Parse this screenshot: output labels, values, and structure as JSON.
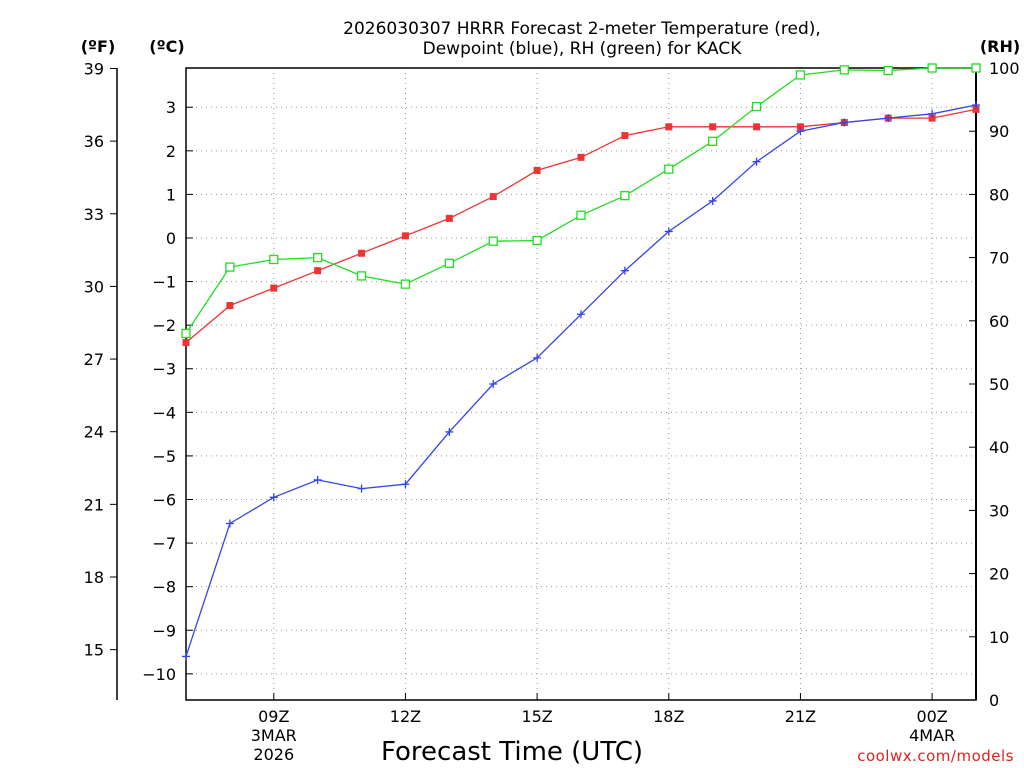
{
  "chart_data": {
    "type": "line",
    "title_line1": "2026030307 HRRR Forecast 2-meter Temperature (red),",
    "title_line2": "Dewpoint (blue), RH (green) for KACK",
    "unit_f": "(ºF)",
    "unit_c": "(ºC)",
    "unit_rh": "(RH)",
    "xlabel": "Forecast Time (UTC)",
    "credit": "coolwx.com/models",
    "x_hours": [
      7,
      8,
      9,
      10,
      11,
      12,
      13,
      14,
      15,
      16,
      17,
      18,
      19,
      20,
      21,
      22,
      23,
      24,
      25
    ],
    "xlim": [
      7,
      25
    ],
    "x_ticks": [
      {
        "hour": 9,
        "lines": [
          "09Z",
          "3MAR",
          "2026"
        ]
      },
      {
        "hour": 12,
        "lines": [
          "12Z"
        ]
      },
      {
        "hour": 15,
        "lines": [
          "15Z"
        ]
      },
      {
        "hour": 18,
        "lines": [
          "18Z"
        ]
      },
      {
        "hour": 21,
        "lines": [
          "21Z"
        ]
      },
      {
        "hour": 24,
        "lines": [
          "00Z",
          "4MAR"
        ]
      }
    ],
    "c_axis": {
      "ylim": [
        -10.6,
        3.9
      ],
      "ticks": [
        3,
        2,
        1,
        0,
        -1,
        -2,
        -3,
        -4,
        -5,
        -6,
        -7,
        -8,
        -9,
        -10
      ],
      "labels": [
        "3",
        "2",
        "1",
        "0",
        "−1",
        "−2",
        "−3",
        "−4",
        "−5",
        "−6",
        "−7",
        "−8",
        "−9",
        "−10"
      ]
    },
    "f_axis": {
      "ticks": [
        39,
        36,
        33,
        30,
        27,
        24,
        21,
        18,
        15
      ],
      "labels": [
        "39",
        "36",
        "33",
        "30",
        "27",
        "24",
        "21",
        "18",
        "15"
      ]
    },
    "rh_axis": {
      "ylim": [
        0,
        100
      ],
      "ticks": [
        100,
        90,
        80,
        70,
        60,
        50,
        40,
        30,
        20,
        10,
        0
      ],
      "labels": [
        "100",
        "90",
        "80",
        "70",
        "60",
        "50",
        "40",
        "30",
        "20",
        "10",
        "0"
      ]
    },
    "series": [
      {
        "name": "Temperature",
        "axis": "c",
        "color": "#ee3333",
        "marker": "filled-square",
        "values": [
          -2.4,
          -1.55,
          -1.15,
          -0.75,
          -0.35,
          0.05,
          0.45,
          0.95,
          1.55,
          1.85,
          2.35,
          2.55,
          2.55,
          2.55,
          2.55,
          2.65,
          2.75,
          2.75,
          2.95
        ]
      },
      {
        "name": "Dewpoint",
        "axis": "c",
        "color": "#3344ee",
        "marker": "plus",
        "values": [
          -9.6,
          -6.55,
          -5.95,
          -5.55,
          -5.75,
          -5.65,
          -4.45,
          -3.35,
          -2.75,
          -1.75,
          -0.75,
          0.15,
          0.85,
          1.75,
          2.45,
          2.65,
          2.75,
          2.85,
          3.05
        ]
      },
      {
        "name": "RH",
        "axis": "rh",
        "color": "#22dd22",
        "marker": "open-square",
        "values": [
          58,
          68.5,
          69.7,
          70,
          67.1,
          65.8,
          69.1,
          72.6,
          72.7,
          76.7,
          79.8,
          84,
          88.4,
          93.9,
          98.9,
          99.7,
          99.6,
          100,
          100
        ]
      }
    ]
  }
}
